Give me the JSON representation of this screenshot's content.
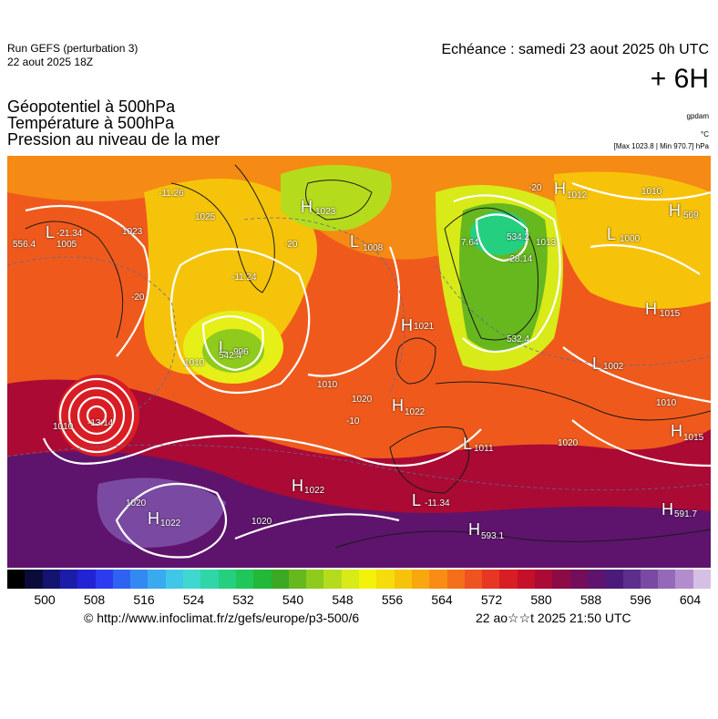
{
  "header": {
    "run": "Run GEFS (perturbation 3)",
    "run_date": "22 aout 2025 18Z",
    "echeance": "Echéance : samedi 23 aout 2025 0h UTC",
    "step": "+ 6H",
    "title_lines": [
      "Géopotentiel à 500hPa",
      "Température à 500hPa",
      "Pression au niveau de la mer"
    ],
    "unit_gpdam": "gpdam",
    "unit_c": "°C",
    "maxmin": "[Max 1023.8 | Min 970.7] hPa"
  },
  "colorbar": {
    "ticks": [
      "500",
      "508",
      "516",
      "524",
      "532",
      "540",
      "548",
      "556",
      "564",
      "572",
      "580",
      "588",
      "596",
      "604"
    ],
    "colors": [
      "#000000",
      "#0b0b3a",
      "#141470",
      "#1c1caa",
      "#2323d6",
      "#2b3cf0",
      "#2f62f2",
      "#3488f2",
      "#39aaf0",
      "#3fc7e8",
      "#3fd8d0",
      "#2fd6a8",
      "#25cf80",
      "#1fc75a",
      "#22b83a",
      "#3da824",
      "#66b81e",
      "#8ecb1c",
      "#b5dc1c",
      "#d8ea18",
      "#f2f20a",
      "#f5dc0a",
      "#f7c30a",
      "#f8a80e",
      "#f88c14",
      "#f56f1a",
      "#ef5320",
      "#e63624",
      "#d81e24",
      "#c41028",
      "#aa0a34",
      "#8c0a46",
      "#730e5a",
      "#5e146c",
      "#4c1a7a",
      "#5d2e8c",
      "#7a4aa2",
      "#9669b8",
      "#b38cce",
      "#d6bfe4"
    ]
  },
  "map_labels": {
    "highs": [
      {
        "t": "H",
        "v": "1022"
      },
      {
        "t": "H",
        "v": "1021"
      },
      {
        "t": "H",
        "v": "1022"
      },
      {
        "t": "H",
        "v": "1015"
      },
      {
        "t": "H",
        "v": "1012"
      },
      {
        "t": "H",
        "v": "1023"
      },
      {
        "t": "H",
        "v": "569"
      },
      {
        "t": "H",
        "v": "593.1"
      },
      {
        "t": "H",
        "v": "1015"
      },
      {
        "t": "H",
        "v": "591.7"
      },
      {
        "t": "H",
        "v": "1022"
      }
    ],
    "lows": [
      {
        "t": "L",
        "v": "1011"
      },
      {
        "t": "L",
        "v": "1002"
      },
      {
        "t": "L",
        "v": "1000"
      },
      {
        "t": "L",
        "v": "1008"
      },
      {
        "t": "L",
        "v": "996"
      },
      {
        "t": "L",
        "v": "1005"
      },
      {
        "t": "L",
        "v": "-11.34"
      },
      {
        "t": "L",
        "v": "-21.34"
      }
    ],
    "values": [
      "556.4",
      "-11.26",
      "-11.24",
      "-13.14",
      "542.4",
      "534.2",
      "532.4",
      "-28.14",
      "7.64",
      "1010",
      "1020",
      "1023",
      "1013",
      "1010",
      "1020",
      "1020",
      "1010",
      "1010",
      "1020",
      "-20",
      "-20",
      "-20",
      "-10",
      "1010",
      "1025"
    ]
  },
  "footer": {
    "source": "© http://www.infoclimat.fr/z/gefs/europe/p3-500/6",
    "timestamp": "22 ao☆☆t 2025 21:50 UTC"
  }
}
